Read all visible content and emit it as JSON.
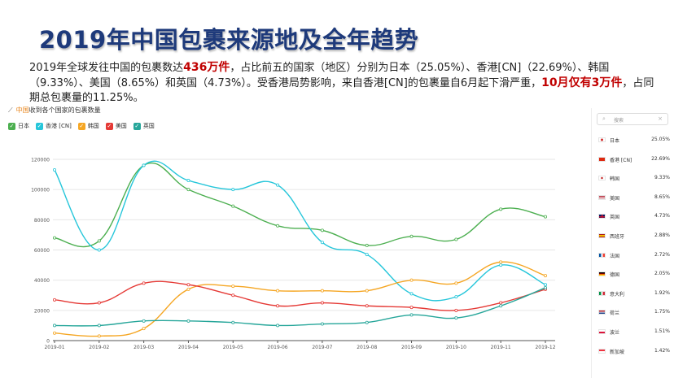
{
  "title": "2019年中国包裹来源地及全年趋势",
  "summary": {
    "p1": "2019年全球发往中国的包裹数达",
    "h1": "436万件",
    "p2": "，占比前五的国家（地区）分别为日本（25.05%）、香港[CN]（22.69%）、韩国（9.33%）、美国（8.65%）和英国（4.73%）。受香港局势影响，来自香港[CN]的包裹量自6月起下滑严重，",
    "h2": "10月仅有3万件",
    "p3": "，占同期总包裹量的11.25%。"
  },
  "chart_header": {
    "trend_icon": "trend-line-icon",
    "accent": "中国",
    "rest": "收到各个国家的包裹数量"
  },
  "colors": {
    "japan": "#4caf50",
    "hongkong": "#26c6da",
    "korea": "#f5a623",
    "usa": "#e53935",
    "uk": "#26a69a",
    "title": "#1e3a7b",
    "highlight": "#c00000"
  },
  "chart_data": {
    "type": "line",
    "x": [
      "2019-01",
      "2019-02",
      "2019-03",
      "2019-04",
      "2019-05",
      "2019-06",
      "2019-07",
      "2019-08",
      "2019-09",
      "2019-10",
      "2019-11",
      "2019-12"
    ],
    "ylim": [
      0,
      120000
    ],
    "yticks": [
      0,
      20000,
      40000,
      60000,
      80000,
      100000,
      120000
    ],
    "grid": true,
    "legend_position": "top-left",
    "series": [
      {
        "name": "日本",
        "color": "#4caf50",
        "values": [
          68000,
          66000,
          116000,
          100000,
          89000,
          76000,
          73000,
          63000,
          69000,
          67000,
          87000,
          82000
        ]
      },
      {
        "name": "香港 [CN]",
        "color": "#26c6da",
        "values": [
          113000,
          60000,
          116000,
          106000,
          100000,
          103000,
          65000,
          57000,
          31000,
          29000,
          50000,
          37000
        ]
      },
      {
        "name": "韩国",
        "color": "#f5a623",
        "values": [
          5000,
          3000,
          8000,
          34000,
          36000,
          33000,
          33000,
          33000,
          40000,
          38000,
          52000,
          43000
        ]
      },
      {
        "name": "美国",
        "color": "#e53935",
        "values": [
          27000,
          25000,
          38000,
          37000,
          30000,
          23000,
          25000,
          23000,
          22000,
          20000,
          25000,
          34000
        ]
      },
      {
        "name": "英国",
        "color": "#26a69a",
        "values": [
          10000,
          10000,
          13000,
          13000,
          12000,
          10000,
          11000,
          12000,
          17000,
          15000,
          23000,
          35000
        ]
      }
    ]
  },
  "side_panel": {
    "search_placeholder": "搜索",
    "countries": [
      {
        "name": "日本",
        "pct": "25.05%",
        "flag": "japan-flag-icon"
      },
      {
        "name": "香港 [CN]",
        "pct": "22.69%",
        "flag": "hongkong-flag-icon"
      },
      {
        "name": "韩国",
        "pct": "9.33%",
        "flag": "korea-flag-icon"
      },
      {
        "name": "美国",
        "pct": "8.65%",
        "flag": "usa-flag-icon"
      },
      {
        "name": "英国",
        "pct": "4.73%",
        "flag": "uk-flag-icon"
      },
      {
        "name": "西班牙",
        "pct": "2.88%",
        "flag": "spain-flag-icon"
      },
      {
        "name": "法国",
        "pct": "2.72%",
        "flag": "france-flag-icon"
      },
      {
        "name": "德国",
        "pct": "2.05%",
        "flag": "germany-flag-icon"
      },
      {
        "name": "意大利",
        "pct": "1.92%",
        "flag": "italy-flag-icon"
      },
      {
        "name": "荷兰",
        "pct": "1.75%",
        "flag": "netherlands-flag-icon"
      },
      {
        "name": "波兰",
        "pct": "1.51%",
        "flag": "poland-flag-icon"
      },
      {
        "name": "新加坡",
        "pct": "1.42%",
        "flag": "singapore-flag-icon"
      }
    ]
  }
}
